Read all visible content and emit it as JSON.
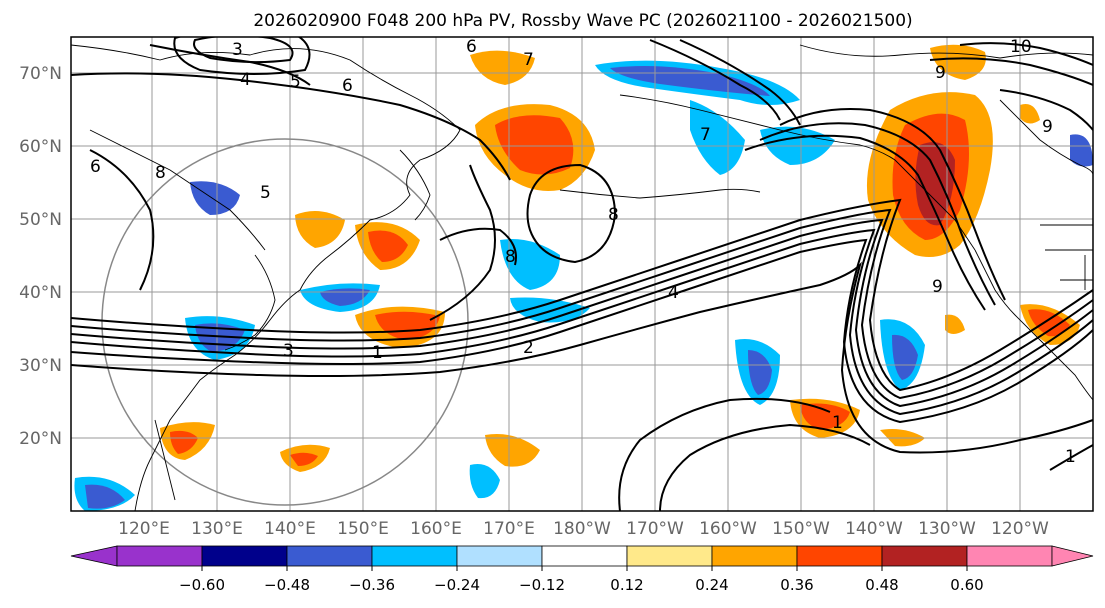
{
  "title": "2026020900 F048 200 hPa PV, Rossby Wave PC (2026021100 - 2026021500)",
  "map": {
    "lat_labels": [
      "70°N",
      "60°N",
      "50°N",
      "40°N",
      "30°N",
      "20°N"
    ],
    "lon_labels": [
      "120°E",
      "130°E",
      "140°E",
      "150°E",
      "160°E",
      "170°E",
      "180°W",
      "170°W",
      "160°W",
      "150°W",
      "140°W",
      "130°W",
      "120°W"
    ],
    "contour_labels": [
      {
        "id": "3a",
        "text": "3"
      },
      {
        "id": "4a",
        "text": "4"
      },
      {
        "id": "5a",
        "text": "5"
      },
      {
        "id": "6a",
        "text": "6"
      },
      {
        "id": "6b",
        "text": "6"
      },
      {
        "id": "7a",
        "text": "7"
      },
      {
        "id": "10a",
        "text": "10"
      },
      {
        "id": "9a",
        "text": "9"
      },
      {
        "id": "8a",
        "text": "8"
      },
      {
        "id": "8b",
        "text": "8"
      },
      {
        "id": "4b",
        "text": "4"
      },
      {
        "id": "2a",
        "text": "2"
      },
      {
        "id": "1a",
        "text": "1"
      },
      {
        "id": "1b",
        "text": "1"
      },
      {
        "id": "3b",
        "text": "3"
      },
      {
        "id": "5b",
        "text": "5"
      },
      {
        "id": "6c",
        "text": "6"
      },
      {
        "id": "9b",
        "text": "9"
      },
      {
        "id": "8c",
        "text": "8"
      },
      {
        "id": "7b",
        "text": "7"
      },
      {
        "id": "1c",
        "text": "1"
      },
      {
        "id": "9c",
        "text": "9"
      }
    ]
  },
  "colorbar": {
    "tick_labels": [
      "−0.60",
      "−0.48",
      "−0.36",
      "−0.24",
      "−0.12",
      "0.12",
      "0.24",
      "0.36",
      "0.48",
      "0.60"
    ],
    "colors": [
      "#9932cc",
      "#00008b",
      "#3a5bd1",
      "#00bfff",
      "#b0e0ff",
      "#ffffff",
      "#ffe98a",
      "#ffa500",
      "#ff4500",
      "#b22222",
      "#ff85b2"
    ]
  }
}
